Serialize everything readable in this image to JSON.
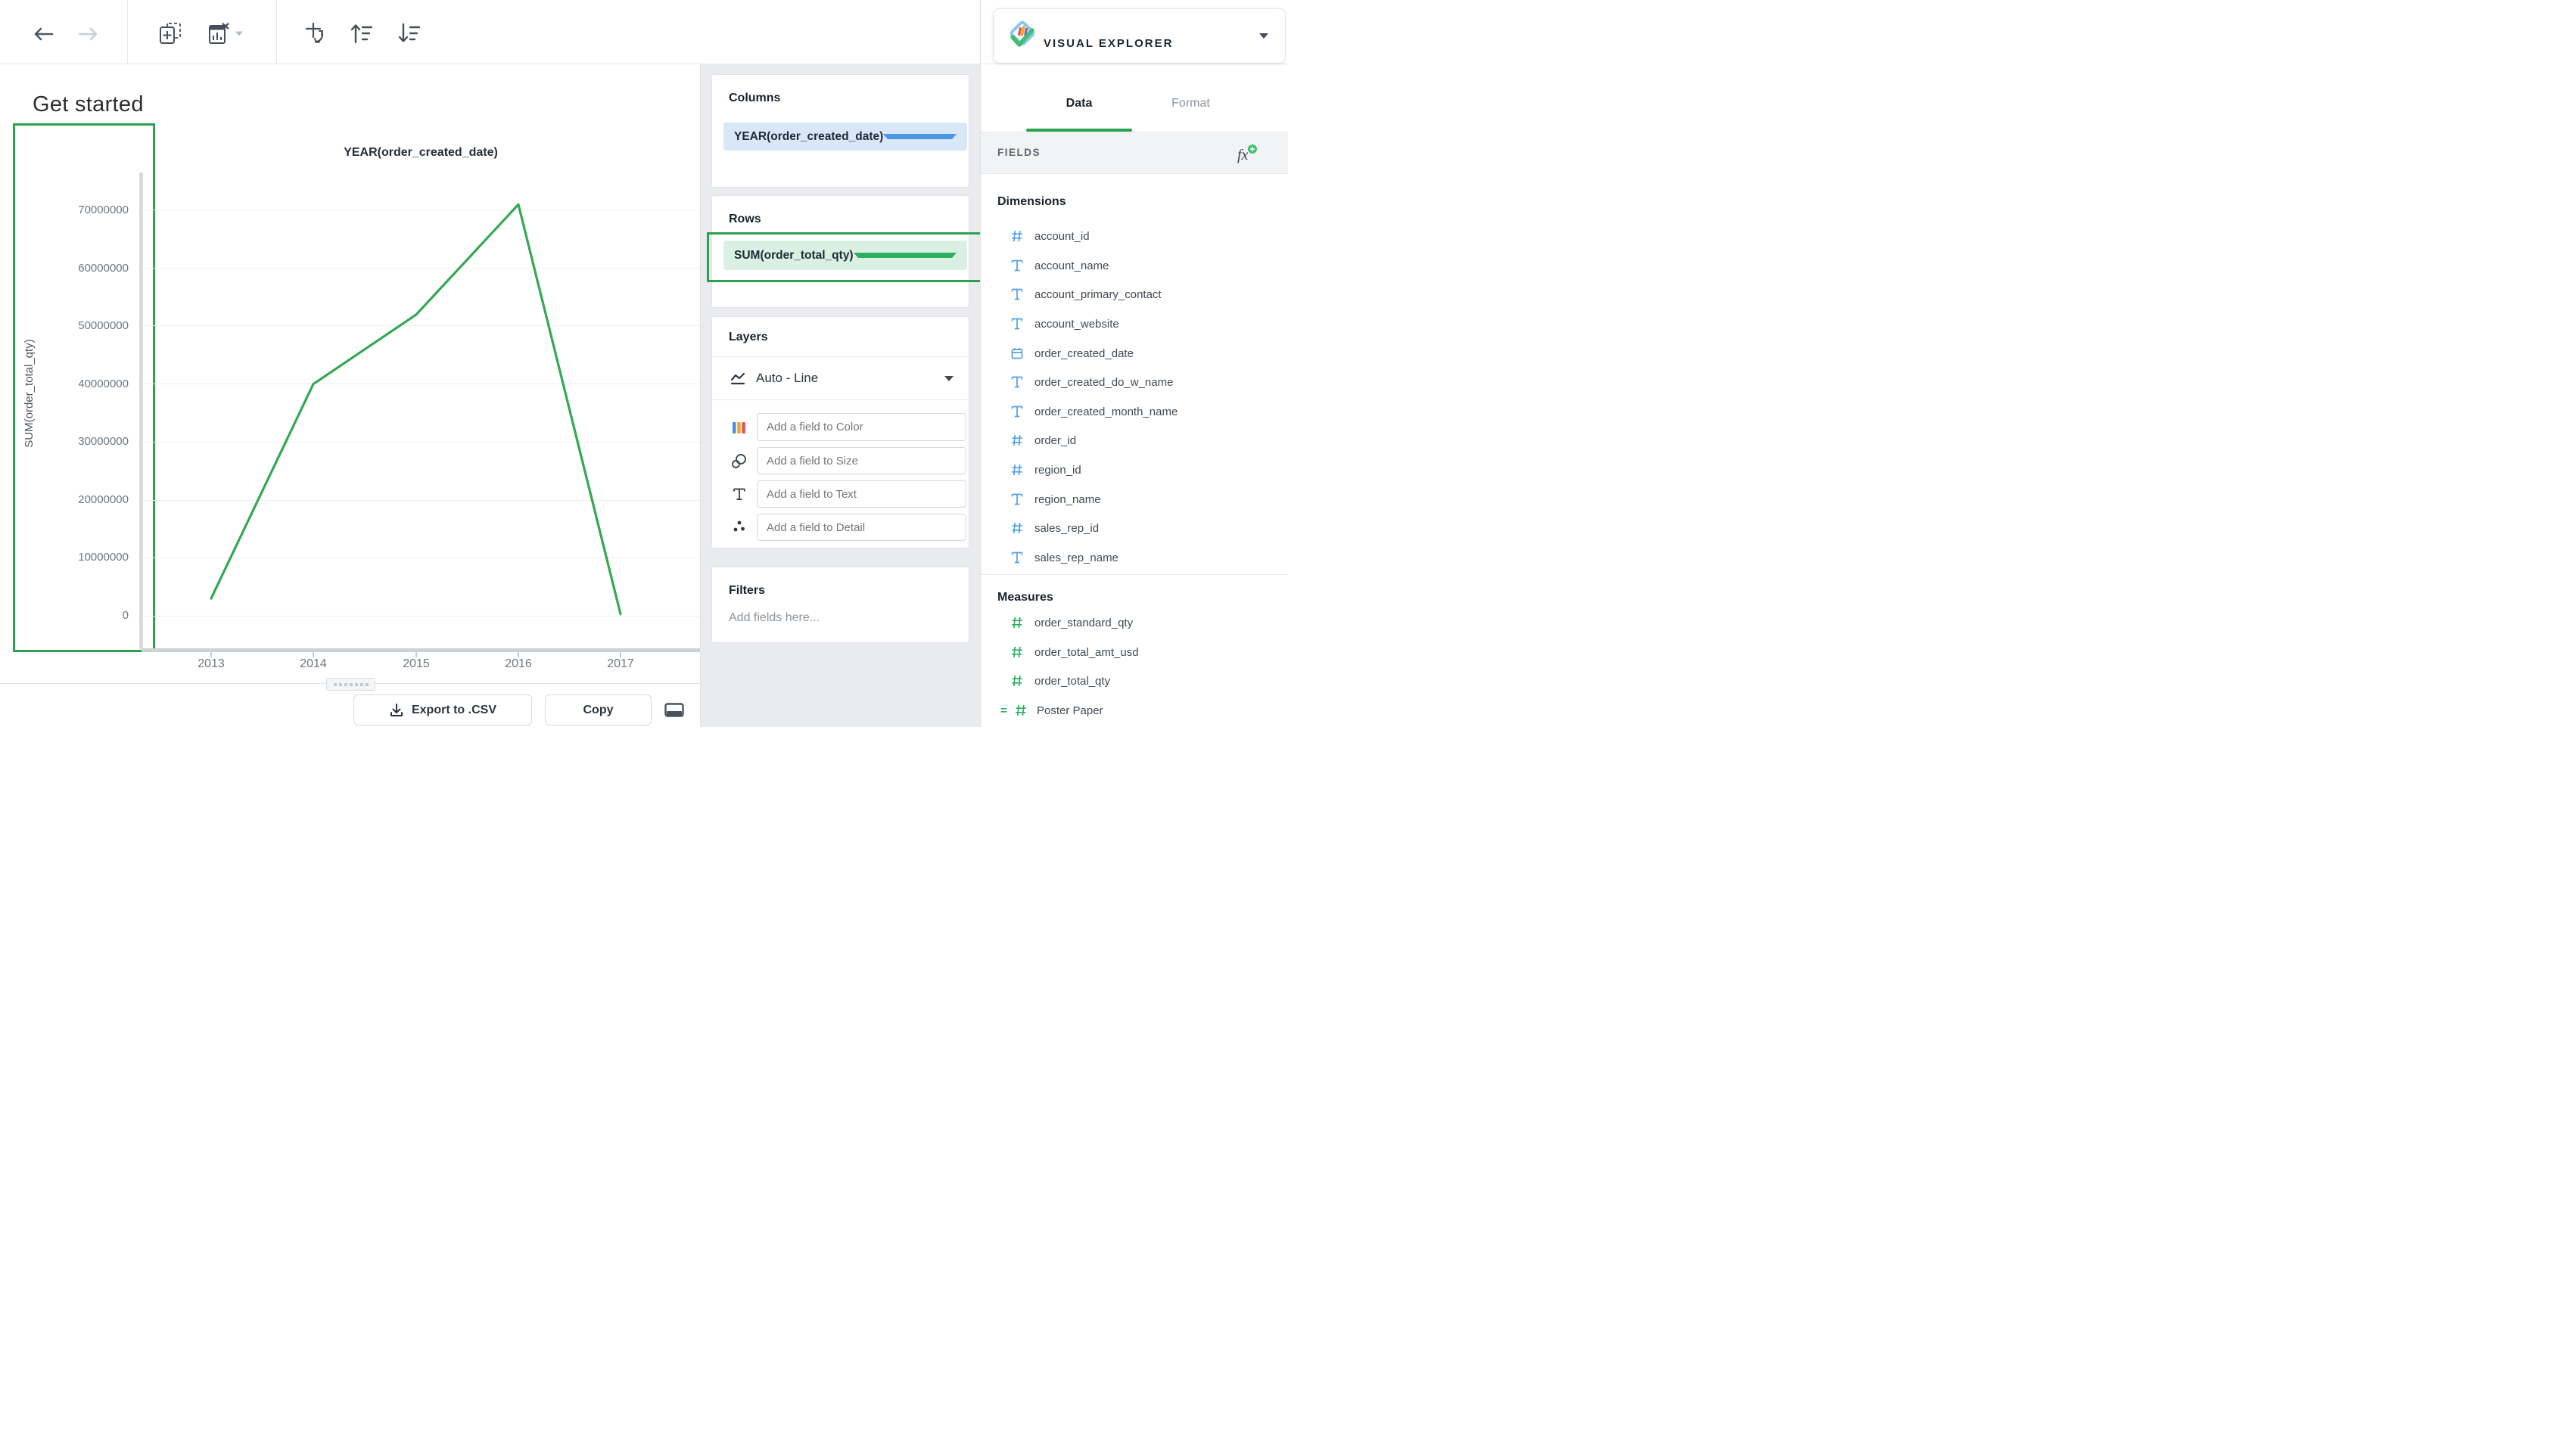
{
  "app": {
    "name": "VISUAL EXPLORER"
  },
  "toolbar": {
    "icons": [
      "back-arrow",
      "forward-arrow",
      "add-visualization",
      "remove-visualization",
      "swap-axes",
      "sort-ascending",
      "sort-descending"
    ]
  },
  "canvas": {
    "title": "Get started"
  },
  "chart_data": {
    "type": "line",
    "title": "YEAR(order_created_date)",
    "xlabel": "YEAR(order_created_date)",
    "ylabel": "SUM(order_total_qty)",
    "x": [
      2013,
      2014,
      2015,
      2016,
      2017
    ],
    "x_labels": [
      "2013",
      "2014",
      "2015",
      "2016",
      "2017"
    ],
    "values": [
      3000000,
      40000000,
      52000000,
      71000000,
      300000
    ],
    "series_name": "SUM(order_total_qty)",
    "ylim": [
      0,
      75000000
    ],
    "y_ticks": [
      0,
      10000000,
      20000000,
      30000000,
      40000000,
      50000000,
      60000000,
      70000000
    ],
    "y_tick_labels_top_to_bottom": [
      "70000000",
      "60000000",
      "50000000",
      "40000000",
      "30000000",
      "20000000",
      "10000000",
      "0"
    ],
    "grid": true,
    "legend": "none",
    "line_color": "#34a853"
  },
  "shelves": {
    "columns": {
      "title": "Columns",
      "pill": "YEAR(order_created_date)"
    },
    "rows": {
      "title": "Rows",
      "pill": "SUM(order_total_qty)"
    },
    "layers": {
      "title": "Layers",
      "mark_type": "Auto - Line",
      "inputs": [
        {
          "icon": "color-icon",
          "placeholder": "Add a field to Color"
        },
        {
          "icon": "size-icon",
          "placeholder": "Add a field to Size"
        },
        {
          "icon": "text-icon",
          "placeholder": "Add a field to Text"
        },
        {
          "icon": "detail-icon",
          "placeholder": "Add a field to Detail"
        }
      ]
    },
    "filters": {
      "title": "Filters",
      "placeholder": "Add fields here..."
    }
  },
  "panel": {
    "tabs": [
      {
        "label": "Data",
        "active": true
      },
      {
        "label": "Format",
        "active": false
      }
    ],
    "fields_header": "FIELDS",
    "dimensions": {
      "title": "Dimensions",
      "items": [
        {
          "name": "account_id",
          "type": "number"
        },
        {
          "name": "account_name",
          "type": "text"
        },
        {
          "name": "account_primary_contact",
          "type": "text"
        },
        {
          "name": "account_website",
          "type": "text"
        },
        {
          "name": "order_created_date",
          "type": "date"
        },
        {
          "name": "order_created_do_w_name",
          "type": "text"
        },
        {
          "name": "order_created_month_name",
          "type": "text"
        },
        {
          "name": "order_id",
          "type": "number"
        },
        {
          "name": "region_id",
          "type": "number"
        },
        {
          "name": "region_name",
          "type": "text"
        },
        {
          "name": "sales_rep_id",
          "type": "number"
        },
        {
          "name": "sales_rep_name",
          "type": "text"
        }
      ]
    },
    "measures": {
      "title": "Measures",
      "items": [
        {
          "name": "order_standard_qty",
          "type": "number"
        },
        {
          "name": "order_total_amt_usd",
          "type": "number"
        },
        {
          "name": "order_total_qty",
          "type": "number"
        },
        {
          "name": "Poster Paper",
          "type": "calculated"
        }
      ]
    }
  },
  "footer": {
    "export_label": "Export to .CSV",
    "copy_label": "Copy"
  },
  "colors": {
    "accent_green": "#2aa24f",
    "accent_blue": "#4a97e4",
    "line_green": "#34a853",
    "pill_blue_bg": "#d9e8f9",
    "pill_green_bg": "#daf0e2",
    "panel_gray": "#e9ebee"
  }
}
